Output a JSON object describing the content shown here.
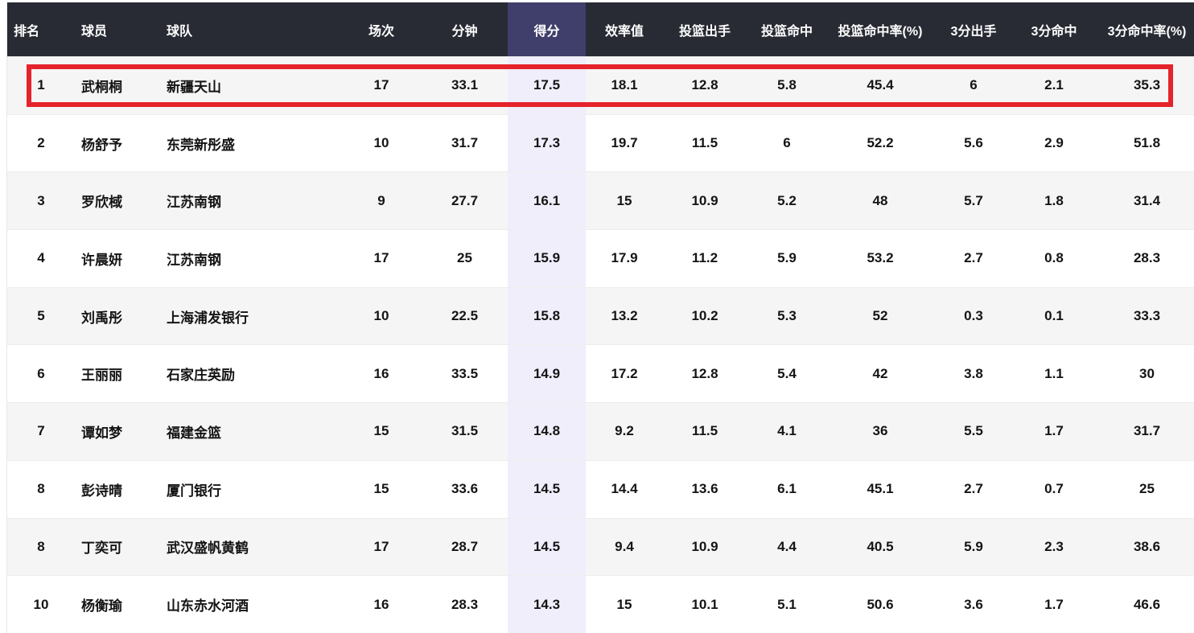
{
  "table": {
    "columns": [
      {
        "key": "rank",
        "label": "排名"
      },
      {
        "key": "player",
        "label": "球员"
      },
      {
        "key": "team",
        "label": "球队"
      },
      {
        "key": "games",
        "label": "场次"
      },
      {
        "key": "minutes",
        "label": "分钟"
      },
      {
        "key": "points",
        "label": "得分"
      },
      {
        "key": "efficiency",
        "label": "效率值"
      },
      {
        "key": "fg-attempts",
        "label": "投篮出手"
      },
      {
        "key": "fg-made",
        "label": "投篮命中"
      },
      {
        "key": "fg-pct",
        "label": "投篮命中率(%)"
      },
      {
        "key": "three-attempts",
        "label": "3分出手"
      },
      {
        "key": "three-made",
        "label": "3分命中"
      },
      {
        "key": "three-pct",
        "label": "3分命中率(%)"
      }
    ],
    "sorted_column": "points",
    "rows": [
      {
        "rank": "1",
        "player": "武桐桐",
        "team": "新疆天山",
        "games": "17",
        "minutes": "33.1",
        "points": "17.5",
        "efficiency": "18.1",
        "fg_attempts": "12.8",
        "fg_made": "5.8",
        "fg_pct": "45.4",
        "three_attempts": "6",
        "three_made": "2.1",
        "three_pct": "35.3",
        "highlighted": true
      },
      {
        "rank": "2",
        "player": "杨舒予",
        "team": "东莞新彤盛",
        "games": "10",
        "minutes": "31.7",
        "points": "17.3",
        "efficiency": "19.7",
        "fg_attempts": "11.5",
        "fg_made": "6",
        "fg_pct": "52.2",
        "three_attempts": "5.6",
        "three_made": "2.9",
        "three_pct": "51.8",
        "highlighted": false
      },
      {
        "rank": "3",
        "player": "罗欣棫",
        "team": "江苏南钢",
        "games": "9",
        "minutes": "27.7",
        "points": "16.1",
        "efficiency": "15",
        "fg_attempts": "10.9",
        "fg_made": "5.2",
        "fg_pct": "48",
        "three_attempts": "5.7",
        "three_made": "1.8",
        "three_pct": "31.4",
        "highlighted": false
      },
      {
        "rank": "4",
        "player": "许晨妍",
        "team": "江苏南钢",
        "games": "17",
        "minutes": "25",
        "points": "15.9",
        "efficiency": "17.9",
        "fg_attempts": "11.2",
        "fg_made": "5.9",
        "fg_pct": "53.2",
        "three_attempts": "2.7",
        "three_made": "0.8",
        "three_pct": "28.3",
        "highlighted": false
      },
      {
        "rank": "5",
        "player": "刘禹彤",
        "team": "上海浦发银行",
        "games": "10",
        "minutes": "22.5",
        "points": "15.8",
        "efficiency": "13.2",
        "fg_attempts": "10.2",
        "fg_made": "5.3",
        "fg_pct": "52",
        "three_attempts": "0.3",
        "three_made": "0.1",
        "three_pct": "33.3",
        "highlighted": false
      },
      {
        "rank": "6",
        "player": "王丽丽",
        "team": "石家庄英励",
        "games": "16",
        "minutes": "33.5",
        "points": "14.9",
        "efficiency": "17.2",
        "fg_attempts": "12.8",
        "fg_made": "5.4",
        "fg_pct": "42",
        "three_attempts": "3.8",
        "three_made": "1.1",
        "three_pct": "30",
        "highlighted": false
      },
      {
        "rank": "7",
        "player": "谭如梦",
        "team": "福建金篮",
        "games": "15",
        "minutes": "31.5",
        "points": "14.8",
        "efficiency": "9.2",
        "fg_attempts": "11.5",
        "fg_made": "4.1",
        "fg_pct": "36",
        "three_attempts": "5.5",
        "three_made": "1.7",
        "three_pct": "31.7",
        "highlighted": false
      },
      {
        "rank": "8",
        "player": "彭诗晴",
        "team": "厦门银行",
        "games": "15",
        "minutes": "33.6",
        "points": "14.5",
        "efficiency": "14.4",
        "fg_attempts": "13.6",
        "fg_made": "6.1",
        "fg_pct": "45.1",
        "three_attempts": "2.7",
        "three_made": "0.7",
        "three_pct": "25",
        "highlighted": false
      },
      {
        "rank": "8",
        "player": "丁奕可",
        "team": "武汉盛帆黄鹤",
        "games": "17",
        "minutes": "28.7",
        "points": "14.5",
        "efficiency": "9.4",
        "fg_attempts": "10.9",
        "fg_made": "4.4",
        "fg_pct": "40.5",
        "three_attempts": "5.9",
        "three_made": "2.3",
        "three_pct": "38.6",
        "highlighted": false
      },
      {
        "rank": "10",
        "player": "杨衡瑜",
        "team": "山东赤水河酒",
        "games": "16",
        "minutes": "28.3",
        "points": "14.3",
        "efficiency": "15",
        "fg_attempts": "10.1",
        "fg_made": "5.1",
        "fg_pct": "50.6",
        "three_attempts": "3.6",
        "three_made": "1.7",
        "three_pct": "46.6",
        "highlighted": false
      }
    ]
  },
  "colors": {
    "header_bg": "#282b33",
    "header_text": "#ffffff",
    "sorted_header_bg": "#403e6a",
    "sorted_column_bg": "#f0eefb",
    "row_alt_bg": "#f5f5f6",
    "row_bg": "#ffffff",
    "highlight_border": "#e5232b",
    "cell_text": "#141414"
  }
}
